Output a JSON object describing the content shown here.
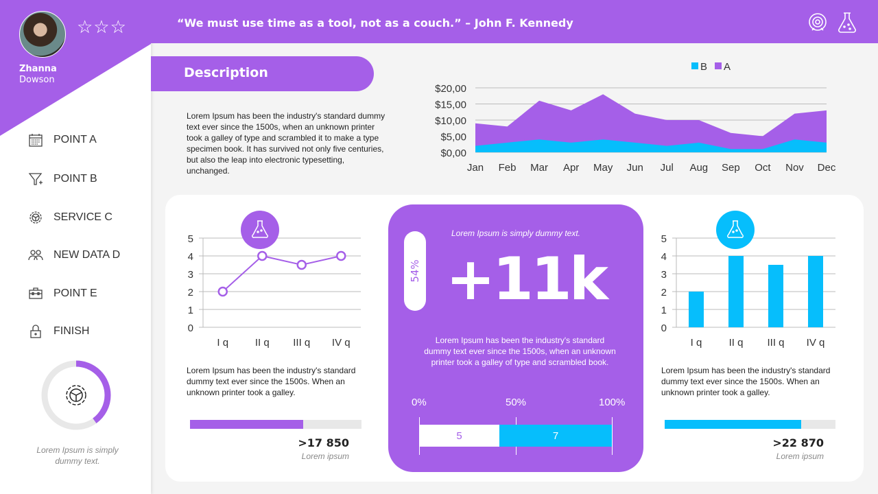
{
  "profile": {
    "first_name": "Zhanna",
    "last_name": "Dowson",
    "rating_stars": 3
  },
  "header": {
    "quote": "“We must use time as a tool, not as a couch.” – John F. Kennedy",
    "icons": [
      "target-icon",
      "flask-icon"
    ]
  },
  "sidebar": {
    "items": [
      {
        "label": "POINT A",
        "icon": "calendar-icon"
      },
      {
        "label": "POINT B",
        "icon": "funnel-icon"
      },
      {
        "label": "SERVICE C",
        "icon": "gear-icon"
      },
      {
        "label": "NEW DATA D",
        "icon": "users-icon"
      },
      {
        "label": "POINT E",
        "icon": "toolbox-icon"
      },
      {
        "label": "FINISH",
        "icon": "lock-icon"
      }
    ],
    "donut_percent": 40,
    "caption": "Lorem Ipsum is simply dummy text."
  },
  "description": {
    "title": "Description",
    "text": "Lorem Ipsum has been the industry's standard dummy text ever since the 1500s, when an unknown printer took a galley of type and scrambled it to make a type specimen book. It has survived not only five centuries, but also the leap into electronic typesetting, unchanged."
  },
  "colors": {
    "purple": "#a55fe8",
    "blue": "#06befc"
  },
  "chart_data": [
    {
      "type": "area",
      "categories": [
        "Jan",
        "Feb",
        "Mar",
        "Apr",
        "May",
        "Jun",
        "Jul",
        "Aug",
        "Sep",
        "Oct",
        "Nov",
        "Dec"
      ],
      "series": [
        {
          "name": "B",
          "values": [
            2,
            3,
            4,
            3,
            4,
            3,
            2,
            3,
            1,
            1,
            4,
            3
          ]
        },
        {
          "name": "A",
          "values": [
            9,
            8,
            16,
            13,
            18,
            12,
            10,
            10,
            6,
            5,
            12,
            13
          ]
        }
      ],
      "yticks": [
        "$0,00",
        "$5,00",
        "$10,00",
        "$15,00",
        "$20,00"
      ],
      "ylim": [
        0,
        20
      ],
      "grid": true,
      "legend": "top"
    },
    {
      "type": "line",
      "categories": [
        "I q",
        "II q",
        "III q",
        "IV q"
      ],
      "values": [
        2,
        4,
        3.5,
        4
      ],
      "ylim": [
        0,
        5
      ],
      "yticks": [
        "0",
        "1",
        "2",
        "3",
        "4",
        "5"
      ],
      "grid": true
    },
    {
      "type": "bar",
      "categories": [
        "I q",
        "II q",
        "III q",
        "IV q"
      ],
      "values": [
        2,
        4,
        3.5,
        4
      ],
      "ylim": [
        0,
        5
      ],
      "yticks": [
        "0",
        "1",
        "2",
        "3",
        "4",
        "5"
      ],
      "grid": true
    }
  ],
  "left_panel": {
    "text": "Lorem Ipsum has been the industry's standard dummy text ever since the 1500s. When an unknown printer took a galley.",
    "progress_percent": 66,
    "value": ">17 850",
    "caption": "Lorem ipsum"
  },
  "right_panel": {
    "text": "Lorem Ipsum has been the industry's standard dummy text ever since the 1500s. When an unknown printer took a galley.",
    "progress_percent": 80,
    "value": ">22 870",
    "caption": "Lorem ipsum"
  },
  "center": {
    "subtitle": "Lorem Ipsum is simply dummy text.",
    "badge": "54%",
    "big": "+11k",
    "text": "Lorem Ipsum has been the industry's standard dummy text ever since the 1500s, when an unknown printer took a galley of type and scrambled book.",
    "scale": [
      "0%",
      "50%",
      "100%"
    ],
    "split": [
      {
        "label": "5",
        "value": 5
      },
      {
        "label": "7",
        "value": 7
      }
    ]
  }
}
